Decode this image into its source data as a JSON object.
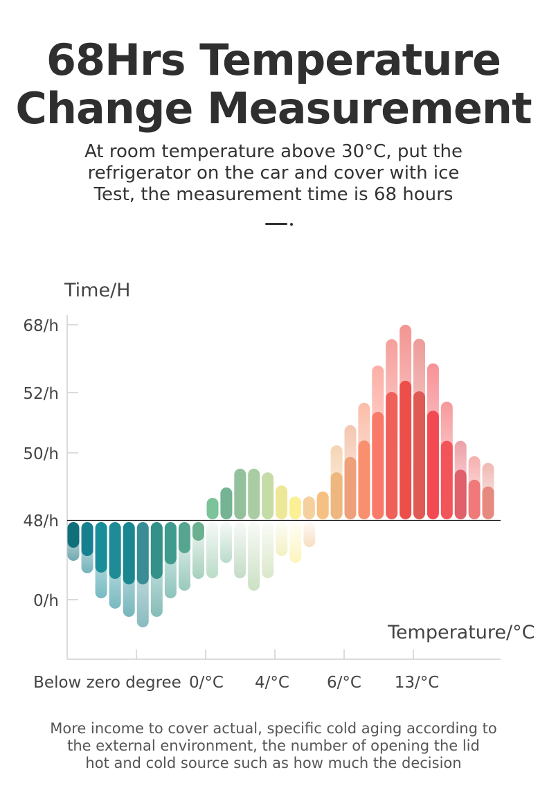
{
  "header": {
    "title_lines": [
      "68Hrs Temperature",
      "Change Measurement"
    ],
    "subtitle_lines": [
      "At room temperature above 30°C, put the",
      "refrigerator on the car and cover with ice",
      "Test, the measurement time is 68 hours"
    ]
  },
  "footer": {
    "lines": [
      "More income to cover actual, specific cold aging according to",
      "the external environment, the number of opening the lid",
      "hot and cold source such as how much the decision"
    ]
  },
  "chart_data": {
    "type": "bar",
    "title": "",
    "ylabel": "Time/H",
    "xlabel": "Temperature/°C",
    "y_ticks": [
      "68/h",
      "52/h",
      "50/h",
      "48/h",
      "0/h"
    ],
    "y_tick_values": [
      68,
      52,
      50,
      48,
      0
    ],
    "x_tick_labels": [
      "Below zero degree",
      "0/°C",
      "4/°C",
      "6/°C",
      "13/°C"
    ],
    "baseline": 48,
    "grid": false,
    "below_baseline_bars": [
      {
        "solid": 31.3,
        "faded": 23.4,
        "color": "#0f6f7a"
      },
      {
        "solid": 26.3,
        "faded": 15.9,
        "color": "#17808e"
      },
      {
        "solid": 16.3,
        "faded": 0.8,
        "color": "#1a8d9a"
      },
      {
        "solid": 12.5,
        "faded": -5.4,
        "color": "#1e8b96"
      },
      {
        "solid": 9.2,
        "faded": -10.4,
        "color": "#1a868f"
      },
      {
        "solid": 9.2,
        "faded": -16.7,
        "color": "#3a8d95"
      },
      {
        "solid": 12.5,
        "faded": -10.4,
        "color": "#349189"
      },
      {
        "solid": 21.3,
        "faded": 0.8,
        "color": "#3f9b8e"
      },
      {
        "solid": 28.0,
        "faded": 5.4,
        "color": "#55a590"
      },
      {
        "solid": 35.5,
        "faded": 12.5,
        "color": "#6bb090"
      },
      {
        "solid": null,
        "faded": 12.9,
        "color": "#8cc4a2"
      },
      {
        "solid": null,
        "faded": 22.1,
        "color": "#8cc4a8"
      },
      {
        "solid": null,
        "faded": 12.9,
        "color": "#9cc4a0"
      },
      {
        "solid": null,
        "faded": 5.4,
        "color": "#a8cc9c"
      },
      {
        "solid": null,
        "faded": 12.9,
        "color": "#c2d8a6"
      },
      {
        "solid": null,
        "faded": 26.3,
        "color": "#e8e89a"
      },
      {
        "solid": null,
        "faded": 22.1,
        "color": "#faee94"
      },
      {
        "solid": null,
        "faded": 31.7,
        "color": "#f2c898"
      }
    ],
    "above_baseline_bars": [
      {
        "solid": 48.66,
        "faded": null,
        "color": "#7cc29a"
      },
      {
        "solid": 48.97,
        "faded": null,
        "color": "#74b394"
      },
      {
        "solid": 49.53,
        "faded": null,
        "color": "#93c19c"
      },
      {
        "solid": 49.53,
        "faded": null,
        "color": "#a9cca2"
      },
      {
        "solid": 49.42,
        "faded": null,
        "color": "#c6dca8"
      },
      {
        "solid": 49.03,
        "faded": null,
        "color": "#ede898"
      },
      {
        "solid": 48.7,
        "faded": null,
        "color": "#fbf094"
      },
      {
        "solid": 48.7,
        "faded": null,
        "color": "#f6cf9e"
      },
      {
        "solid": 48.85,
        "faded": null,
        "color": "#f6c082"
      },
      {
        "solid": 49.42,
        "faded": 50.25,
        "color": "#eeb77f"
      },
      {
        "solid": 49.88,
        "faded": 50.92,
        "color": "#eda07a"
      },
      {
        "solid": 50.41,
        "faded": 51.66,
        "color": "#f8906f"
      },
      {
        "solid": 51.36,
        "faded": 58.4,
        "color": "#fa7a6a"
      },
      {
        "solid": 52.16,
        "faded": 64.6,
        "color": "#f0605a"
      },
      {
        "solid": 54.8,
        "faded": 68,
        "color": "#ec4f4a"
      },
      {
        "solid": 52.3,
        "faded": 64.7,
        "color": "#e05a55"
      },
      {
        "solid": 51.4,
        "faded": 58.9,
        "color": "#f24952"
      },
      {
        "solid": 50.4,
        "faded": 51.7,
        "color": "#f1555a"
      },
      {
        "solid": 49.5,
        "faded": 50.4,
        "color": "#e0606b"
      },
      {
        "solid": 49.2,
        "faded": 49.9,
        "color": "#f07a7a"
      },
      {
        "solid": 49.0,
        "faded": 49.7,
        "color": "#e68a80"
      }
    ]
  }
}
